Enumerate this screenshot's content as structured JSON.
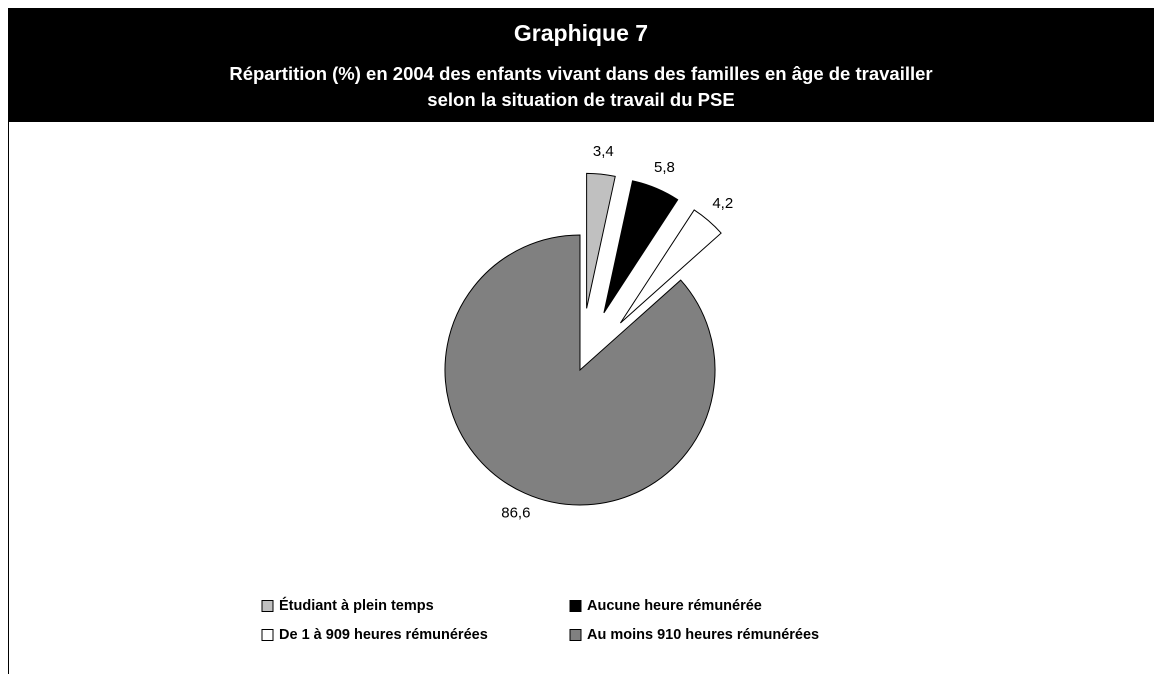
{
  "chart_data": {
    "type": "pie",
    "title": "Graphique 7",
    "subtitle": [
      "Répartition (%) en 2004 des enfants vivant dans des familles en âge de travailler",
      "selon la situation de travail du PSE"
    ],
    "categories": [
      "Étudiant à plein temps",
      "Aucune heure rémunérée",
      "De 1 à 909 heures rémunérées",
      "Au moins 910 heures rémunérées"
    ],
    "values": [
      3.4,
      5.8,
      4.2,
      86.6
    ],
    "value_labels": [
      "3,4",
      "5,8",
      "4,2",
      "86,6"
    ],
    "colors": [
      "#c0c0c0",
      "#000000",
      "#ffffff",
      "#808080"
    ],
    "exploded": [
      true,
      true,
      true,
      false
    ]
  }
}
